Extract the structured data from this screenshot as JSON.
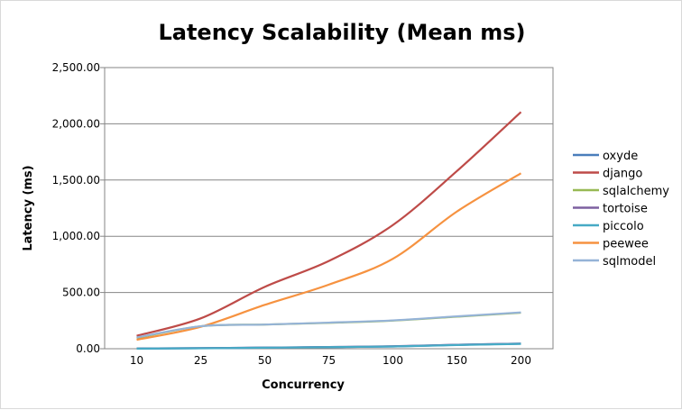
{
  "chart_data": {
    "type": "line",
    "title": "Latency Scalability (Mean ms)",
    "xlabel": "Concurrency",
    "ylabel": "Latency (ms)",
    "categories": [
      "10",
      "25",
      "50",
      "75",
      "100",
      "150",
      "200"
    ],
    "ylim": [
      0,
      2500
    ],
    "yticks": [
      "0.00",
      "500.00",
      "1,000.00",
      "1,500.00",
      "2,000.00",
      "2,500.00"
    ],
    "grid": true,
    "legend_position": "right",
    "series": [
      {
        "name": "oxyde",
        "color": "#4a7ebb",
        "values": [
          2,
          5,
          10,
          15,
          20,
          35,
          45
        ]
      },
      {
        "name": "django",
        "color": "#be4b48",
        "values": [
          115,
          270,
          550,
          780,
          1100,
          1580,
          2105
        ]
      },
      {
        "name": "sqlalchemy",
        "color": "#98b954",
        "values": [
          95,
          200,
          215,
          230,
          250,
          285,
          320
        ]
      },
      {
        "name": "tortoise",
        "color": "#7d60a0",
        "values": [
          2,
          5,
          10,
          15,
          22,
          35,
          45
        ]
      },
      {
        "name": "piccolo",
        "color": "#46aac5",
        "values": [
          1,
          4,
          9,
          14,
          20,
          33,
          43
        ]
      },
      {
        "name": "peewee",
        "color": "#f69240",
        "values": [
          80,
          195,
          390,
          570,
          800,
          1220,
          1560
        ]
      },
      {
        "name": "sqlmodel",
        "color": "#95b3d7",
        "values": [
          100,
          200,
          215,
          232,
          252,
          288,
          323
        ]
      }
    ]
  }
}
